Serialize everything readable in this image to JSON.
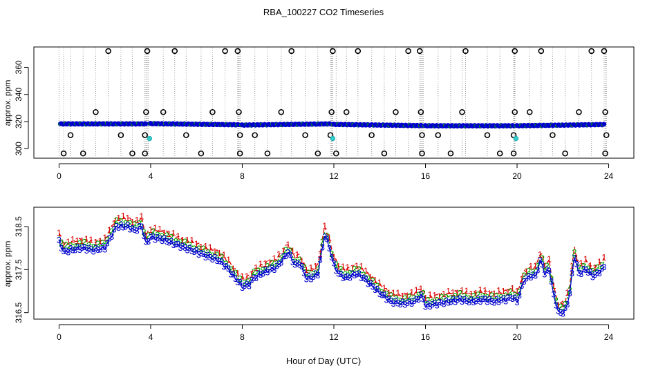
{
  "title": "RBA_100227  CO2 Timeseries",
  "xlabel": "Hour of Day (UTC)",
  "colors": {
    "spike_line": "#9a9a9a",
    "outlier_ring": "#000000",
    "series1": "#dd0000",
    "series2": "#00aa00",
    "series3": "#0000cc",
    "cyan": "#33cccc",
    "orange": "#ff9900"
  },
  "chart_data": [
    {
      "type": "scatter",
      "panel": "top",
      "ylabel": "approx. ppm",
      "xlim": [
        -1.1,
        25.1
      ],
      "ylim": [
        293,
        375
      ],
      "xticks": [
        0,
        4,
        8,
        12,
        16,
        20,
        24
      ],
      "xtick_labels": [
        "0",
        "4",
        "8",
        "12",
        "16",
        "20",
        "24"
      ],
      "yticks": [
        300,
        320,
        340,
        360
      ],
      "ytick_labels": [
        "300",
        "320",
        "340",
        "360"
      ],
      "baseline_segments": [
        {
          "x0": 0.05,
          "x1": 3.8,
          "y0": 318.3,
          "y1": 318.3
        },
        {
          "x0": 3.95,
          "x1": 7.85,
          "y0": 318.5,
          "y1": 317.6
        },
        {
          "x0": 7.95,
          "x1": 11.85,
          "y0": 317.4,
          "y1": 318.3
        },
        {
          "x0": 11.95,
          "x1": 15.85,
          "y0": 317.9,
          "y1": 317.0
        },
        {
          "x0": 15.95,
          "x1": 19.85,
          "y0": 316.9,
          "y1": 316.9
        },
        {
          "x0": 19.95,
          "x1": 23.8,
          "y0": 316.9,
          "y1": 317.8
        }
      ],
      "outliers_high": [
        2.15,
        3.85,
        5.05,
        7.25,
        7.8,
        10.15,
        11.95,
        13.05,
        15.25,
        15.75,
        17.75,
        19.9,
        21.05,
        23.25,
        23.8
      ],
      "outliers_mid": [
        1.6,
        3.8,
        4.55,
        6.7,
        7.85,
        9.7,
        11.9,
        12.55,
        14.7,
        15.8,
        17.6,
        19.9,
        20.55,
        22.7,
        23.85
      ],
      "outliers_low": [
        0.5,
        2.7,
        3.75,
        5.55,
        7.9,
        8.55,
        10.75,
        11.85,
        13.65,
        15.85,
        16.55,
        18.7,
        19.85,
        21.55,
        23.9
      ],
      "outliers_301": [
        0.2,
        1.05,
        3.2,
        3.75,
        6.2,
        7.9,
        9.1,
        11.3,
        12.1,
        14.2,
        15.85,
        17.1,
        19.25,
        19.85,
        22.1,
        23.85
      ],
      "cyan_points": [
        {
          "x": 3.95,
          "y": 307.5
        },
        {
          "x": 11.95,
          "y": 307.5
        },
        {
          "x": 19.95,
          "y": 307.5
        }
      ],
      "x_end": 23.85
    },
    {
      "type": "line",
      "panel": "bottom",
      "ylabel": "approx. ppm",
      "xlim": [
        -1.1,
        25.1
      ],
      "ylim": [
        316.35,
        318.95
      ],
      "xticks": [
        0,
        4,
        8,
        12,
        16,
        20,
        24
      ],
      "xtick_labels": [
        "0",
        "4",
        "8",
        "12",
        "16",
        "20",
        "24"
      ],
      "yticks": [
        316.5,
        317.5,
        318.5
      ],
      "ytick_labels": [
        "316.5",
        "317.5",
        "318.5"
      ],
      "series": [
        {
          "name": "1",
          "offset": 0.15
        },
        {
          "name": "2",
          "offset": 0.05
        },
        {
          "name": "3",
          "offset": -0.05
        }
      ],
      "knots": [
        [
          0.0,
          318.2
        ],
        [
          0.2,
          317.95
        ],
        [
          0.5,
          318.0
        ],
        [
          1.0,
          318.05
        ],
        [
          1.5,
          318.0
        ],
        [
          2.0,
          318.05
        ],
        [
          2.5,
          318.55
        ],
        [
          3.0,
          318.55
        ],
        [
          3.3,
          318.45
        ],
        [
          3.6,
          318.55
        ],
        [
          3.8,
          318.15
        ],
        [
          4.0,
          318.3
        ],
        [
          4.5,
          318.25
        ],
        [
          5.0,
          318.15
        ],
        [
          5.5,
          318.05
        ],
        [
          6.0,
          317.95
        ],
        [
          6.5,
          317.85
        ],
        [
          7.0,
          317.75
        ],
        [
          7.4,
          317.55
        ],
        [
          7.6,
          317.4
        ],
        [
          8.0,
          317.15
        ],
        [
          8.3,
          317.2
        ],
        [
          8.5,
          317.35
        ],
        [
          9.0,
          317.5
        ],
        [
          9.5,
          317.6
        ],
        [
          10.0,
          317.95
        ],
        [
          10.3,
          317.65
        ],
        [
          10.5,
          317.7
        ],
        [
          10.8,
          317.35
        ],
        [
          11.0,
          317.35
        ],
        [
          11.3,
          317.45
        ],
        [
          11.6,
          318.35
        ],
        [
          11.75,
          318.15
        ],
        [
          12.0,
          317.65
        ],
        [
          12.2,
          317.45
        ],
        [
          12.5,
          317.35
        ],
        [
          13.0,
          317.45
        ],
        [
          13.3,
          317.35
        ],
        [
          13.7,
          317.15
        ],
        [
          14.0,
          317.0
        ],
        [
          14.5,
          316.8
        ],
        [
          15.0,
          316.75
        ],
        [
          15.5,
          316.8
        ],
        [
          15.85,
          316.95
        ],
        [
          16.0,
          316.7
        ],
        [
          16.5,
          316.75
        ],
        [
          17.0,
          316.8
        ],
        [
          17.5,
          316.85
        ],
        [
          18.0,
          316.8
        ],
        [
          18.5,
          316.85
        ],
        [
          19.0,
          316.8
        ],
        [
          19.5,
          316.85
        ],
        [
          19.8,
          316.9
        ],
        [
          20.0,
          316.8
        ],
        [
          20.3,
          317.3
        ],
        [
          20.6,
          317.4
        ],
        [
          20.8,
          317.4
        ],
        [
          21.05,
          317.8
        ],
        [
          21.2,
          317.45
        ],
        [
          21.4,
          317.55
        ],
        [
          21.6,
          316.95
        ],
        [
          21.8,
          316.55
        ],
        [
          22.0,
          316.55
        ],
        [
          22.15,
          316.65
        ],
        [
          22.3,
          317.0
        ],
        [
          22.5,
          317.85
        ],
        [
          22.7,
          317.45
        ],
        [
          23.0,
          317.55
        ],
        [
          23.3,
          317.4
        ],
        [
          23.5,
          317.45
        ],
        [
          23.8,
          317.6
        ]
      ]
    }
  ]
}
